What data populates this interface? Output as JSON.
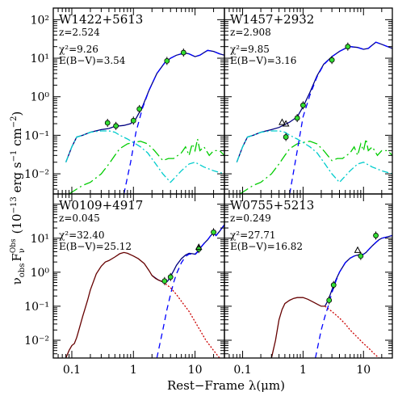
{
  "figure": {
    "xlabel": "Rest−Frame λ(μm)",
    "ylabel": "ν_obs F_ν^Obs (10^−13 erg s^−1 cm^−2)",
    "ylabel_parts": {
      "nu": "ν",
      "obs": "obs",
      "F": "F",
      "Fsub": "ν",
      "Fsup": "Obs",
      "units": "(10",
      "exp": "−13",
      "units2": " erg s",
      "exp2": "−1",
      "units3": " cm",
      "exp3": "−2",
      "close": ")"
    }
  },
  "chart_data": [
    {
      "type": "line",
      "name": "W1422+5613",
      "labels": {
        "z": "z=2.524",
        "chi2": "χ²=9.26",
        "ebv": "E(B−V)=3.54"
      },
      "xscale": "log",
      "yscale": "log",
      "xlim": [
        0.05,
        30
      ],
      "ylim": [
        0.003,
        200
      ],
      "xticks": [
        "0.1",
        "1",
        "10"
      ],
      "yticks": [
        "10⁻²",
        "10⁻¹",
        "10⁰",
        "10¹",
        "10²"
      ],
      "photometry": [
        [
          0.38,
          0.21
        ],
        [
          0.52,
          0.175
        ],
        [
          1.0,
          0.24
        ],
        [
          1.25,
          0.48
        ],
        [
          3.5,
          8.5
        ],
        [
          6.5,
          14
        ]
      ],
      "upper_limits": [],
      "series": [
        {
          "role": "total",
          "color": "#000080",
          "dash": "solid",
          "x": [
            0.08,
            0.1,
            0.12,
            0.15,
            0.2,
            0.3,
            0.4,
            0.5,
            0.7,
            0.9,
            1.1,
            1.4,
            1.8,
            2.4,
            3.2,
            4,
            5,
            6,
            7,
            8,
            10,
            12,
            14,
            16,
            20,
            25,
            30
          ],
          "y": [
            0.02,
            0.05,
            0.09,
            0.1,
            0.12,
            0.14,
            0.15,
            0.17,
            0.18,
            0.2,
            0.27,
            0.55,
            1.5,
            4,
            7.5,
            10,
            12,
            13,
            13.5,
            13,
            11,
            12,
            14,
            16,
            15,
            13,
            12
          ]
        },
        {
          "role": "galaxy",
          "color": "#00cc00",
          "dash": "longdash",
          "x": [
            0.09,
            0.12,
            0.15,
            0.2,
            0.3,
            0.4,
            0.5,
            0.6,
            0.8,
            1,
            1.3,
            1.7,
            2.2,
            3,
            3.7,
            4.5,
            6,
            7,
            8,
            9,
            10,
            11,
            12,
            14,
            17,
            20,
            25,
            30
          ],
          "y": [
            0.003,
            0.004,
            0.005,
            0.006,
            0.01,
            0.018,
            0.03,
            0.045,
            0.06,
            0.065,
            0.07,
            0.06,
            0.04,
            0.022,
            0.025,
            0.025,
            0.035,
            0.05,
            0.03,
            0.06,
            0.04,
            0.08,
            0.04,
            0.05,
            0.03,
            0.04,
            0.04,
            0.03
          ]
        },
        {
          "role": "agn_unobscured",
          "color": "#00cccc",
          "dash": "dashdot",
          "x": [
            0.08,
            0.1,
            0.12,
            0.15,
            0.2,
            0.3,
            0.4,
            0.5,
            0.6,
            0.8,
            1,
            1.3,
            1.7,
            2.2,
            3,
            4,
            6,
            8,
            10,
            14,
            20,
            30
          ],
          "y": [
            0.02,
            0.05,
            0.09,
            0.1,
            0.12,
            0.13,
            0.13,
            0.12,
            0.1,
            0.08,
            0.065,
            0.05,
            0.035,
            0.02,
            0.01,
            0.006,
            0.012,
            0.018,
            0.02,
            0.015,
            0.012,
            0.01
          ]
        },
        {
          "role": "agn_obscured",
          "color": "#0000ff",
          "dash": "dashed",
          "x": [
            0.7,
            0.9,
            1.1,
            1.4,
            1.8,
            2.4,
            3.2,
            4,
            5,
            6,
            7,
            8,
            10,
            12,
            14,
            16,
            20,
            25,
            30
          ],
          "y": [
            0.003,
            0.02,
            0.12,
            0.5,
            1.5,
            4,
            7.5,
            10,
            12,
            13,
            13.5,
            13,
            11,
            12,
            14,
            16,
            15,
            13,
            12
          ]
        }
      ]
    },
    {
      "type": "line",
      "name": "W1457+2932",
      "labels": {
        "z": "z=2.908",
        "chi2": "χ²=9.85",
        "ebv": "E(B−V)=3.16"
      },
      "xscale": "log",
      "yscale": "log",
      "xlim": [
        0.05,
        30
      ],
      "ylim": [
        0.003,
        200
      ],
      "xticks": [
        "0.1",
        "1",
        "10"
      ],
      "yticks": [],
      "photometry": [
        [
          0.52,
          0.09
        ],
        [
          0.8,
          0.28
        ],
        [
          1.0,
          0.6
        ],
        [
          3.0,
          9
        ],
        [
          5.5,
          20
        ]
      ],
      "upper_limits": [
        [
          0.45,
          0.22
        ],
        [
          0.52,
          0.2
        ]
      ],
      "series": [
        {
          "role": "total",
          "color": "#000080",
          "dash": "solid",
          "x": [
            0.08,
            0.1,
            0.12,
            0.15,
            0.2,
            0.3,
            0.4,
            0.5,
            0.6,
            0.8,
            1,
            1.3,
            1.7,
            2.2,
            3,
            4,
            5,
            6,
            8,
            10,
            12,
            14,
            16,
            20,
            25,
            30
          ],
          "y": [
            0.02,
            0.05,
            0.09,
            0.1,
            0.12,
            0.14,
            0.16,
            0.19,
            0.22,
            0.3,
            0.55,
            1.3,
            3.5,
            7,
            11,
            15,
            18,
            20,
            19,
            17,
            18,
            22,
            26,
            23,
            20,
            18
          ]
        },
        {
          "role": "galaxy",
          "color": "#00cc00",
          "dash": "longdash",
          "x": [
            0.09,
            0.12,
            0.15,
            0.2,
            0.3,
            0.4,
            0.5,
            0.6,
            0.8,
            1,
            1.3,
            1.7,
            2.2,
            3,
            3.7,
            4.5,
            6,
            7,
            8,
            9,
            10,
            11,
            12,
            14,
            17,
            20,
            25,
            30
          ],
          "y": [
            0.003,
            0.004,
            0.005,
            0.006,
            0.01,
            0.018,
            0.03,
            0.045,
            0.06,
            0.065,
            0.07,
            0.06,
            0.04,
            0.022,
            0.025,
            0.025,
            0.035,
            0.05,
            0.03,
            0.06,
            0.04,
            0.08,
            0.04,
            0.05,
            0.03,
            0.04,
            0.04,
            0.03
          ]
        },
        {
          "role": "agn_unobscured",
          "color": "#00cccc",
          "dash": "dashdot",
          "x": [
            0.08,
            0.1,
            0.12,
            0.15,
            0.2,
            0.3,
            0.4,
            0.5,
            0.6,
            0.8,
            1,
            1.3,
            1.7,
            2.2,
            3,
            4,
            6,
            8,
            10,
            14,
            20,
            30
          ],
          "y": [
            0.02,
            0.05,
            0.09,
            0.1,
            0.12,
            0.13,
            0.13,
            0.12,
            0.1,
            0.08,
            0.065,
            0.05,
            0.035,
            0.02,
            0.01,
            0.006,
            0.012,
            0.018,
            0.02,
            0.015,
            0.012,
            0.01
          ]
        },
        {
          "role": "agn_obscured",
          "color": "#0000ff",
          "dash": "dashed",
          "x": [
            0.6,
            0.8,
            1,
            1.3,
            1.7,
            2.2,
            3,
            4,
            5,
            6,
            8,
            10,
            12,
            14,
            16,
            20,
            25,
            30
          ],
          "y": [
            0.003,
            0.04,
            0.3,
            1.1,
            3.3,
            6.8,
            11,
            15,
            18,
            20,
            19,
            17,
            18,
            22,
            26,
            23,
            20,
            18
          ]
        }
      ]
    },
    {
      "type": "line",
      "name": "W0109+4917",
      "labels": {
        "z": "z=0.045",
        "chi2": "χ²=32.40",
        "ebv": "E(B−V)=25.12"
      },
      "xscale": "log",
      "yscale": "log",
      "xlim": [
        0.05,
        30
      ],
      "ylim": [
        0.003,
        200
      ],
      "xticks": [
        "0.1",
        "1",
        "10"
      ],
      "yticks": [
        "10⁻²",
        "10⁻¹",
        "10⁰",
        "10¹",
        ""
      ],
      "photometry": [
        [
          3.2,
          0.55
        ],
        [
          4.0,
          0.72
        ],
        [
          11.5,
          4.8
        ],
        [
          20.0,
          15
        ]
      ],
      "upper_limits": [
        [
          11.5,
          5.5
        ]
      ],
      "series": [
        {
          "role": "total",
          "color": "#000080",
          "dash": "solid",
          "x": [
            2,
            2.5,
            3,
            3.3,
            3.6,
            4,
            4.5,
            5,
            6,
            7,
            8,
            9,
            10,
            11,
            12,
            14,
            16,
            18,
            20,
            22,
            25,
            30
          ],
          "y": [
            0.8,
            0.6,
            0.52,
            0.5,
            0.55,
            0.75,
            1.1,
            1.6,
            2.5,
            3.2,
            3.6,
            3.5,
            3.4,
            4,
            5,
            7,
            9,
            12,
            14,
            12,
            16,
            25
          ]
        },
        {
          "role": "host",
          "color": "#660000",
          "dash": "solid",
          "x": [
            0.08,
            0.09,
            0.1,
            0.11,
            0.12,
            0.13,
            0.15,
            0.18,
            0.2,
            0.25,
            0.3,
            0.35,
            0.4,
            0.5,
            0.6,
            0.7,
            0.8,
            1,
            1.2,
            1.5,
            1.8,
            2,
            2.3,
            2.6,
            3
          ],
          "y": [
            0.003,
            0.005,
            0.007,
            0.008,
            0.012,
            0.02,
            0.05,
            0.15,
            0.3,
            0.9,
            1.5,
            2,
            2.2,
            2.8,
            3.5,
            3.8,
            3.6,
            3,
            2.5,
            1.8,
            1.1,
            0.8,
            0.65,
            0.58,
            0.52
          ]
        },
        {
          "role": "host_tail",
          "color": "#cc0000",
          "dash": "dotted",
          "x": [
            3,
            4,
            5,
            6,
            8,
            10,
            12,
            15,
            20,
            25
          ],
          "y": [
            0.52,
            0.35,
            0.22,
            0.14,
            0.07,
            0.035,
            0.02,
            0.01,
            0.005,
            0.003
          ]
        },
        {
          "role": "agn_obscured",
          "color": "#0000ff",
          "dash": "dashed",
          "x": [
            2.4,
            3,
            3.5,
            4,
            4.5,
            5,
            6,
            7,
            8,
            9,
            10,
            11,
            12,
            14,
            16,
            18,
            20,
            22,
            25,
            30
          ],
          "y": [
            0.003,
            0.02,
            0.08,
            0.22,
            0.5,
            0.9,
            1.9,
            2.9,
            3.4,
            3.4,
            3.3,
            3.9,
            5,
            7,
            9,
            12,
            14,
            12,
            16,
            25
          ]
        }
      ]
    },
    {
      "type": "line",
      "name": "W0755+5213",
      "labels": {
        "z": "z=0.249",
        "chi2": "χ²=27.71",
        "ebv": "E(B−V)=16.82"
      },
      "xscale": "log",
      "yscale": "log",
      "xlim": [
        0.05,
        30
      ],
      "ylim": [
        0.003,
        200
      ],
      "xticks": [
        "0.1",
        "1",
        "10"
      ],
      "yticks": [],
      "photometry": [
        [
          2.7,
          0.15
        ],
        [
          3.2,
          0.42
        ],
        [
          9.0,
          3.0
        ],
        [
          16.0,
          12
        ]
      ],
      "upper_limits": [
        [
          8.0,
          4.5
        ]
      ],
      "series": [
        {
          "role": "total",
          "color": "#000080",
          "dash": "solid",
          "x": [
            2.3,
            2.6,
            3,
            3.5,
            4,
            5,
            6,
            7,
            8,
            9,
            10,
            11,
            12,
            14,
            16,
            18,
            20,
            25,
            30
          ],
          "y": [
            0.1,
            0.15,
            0.3,
            0.6,
            1,
            1.9,
            2.6,
            3,
            3.2,
            3.3,
            3.4,
            3.8,
            4.5,
            6,
            7.5,
            9,
            10,
            11,
            12
          ]
        },
        {
          "role": "host",
          "color": "#660000",
          "dash": "solid",
          "x": [
            0.3,
            0.32,
            0.35,
            0.4,
            0.45,
            0.5,
            0.6,
            0.7,
            0.8,
            1,
            1.2,
            1.5,
            1.8,
            2,
            2.3
          ],
          "y": [
            0.003,
            0.005,
            0.01,
            0.04,
            0.08,
            0.12,
            0.15,
            0.17,
            0.18,
            0.18,
            0.16,
            0.13,
            0.11,
            0.1,
            0.1
          ]
        },
        {
          "role": "host_tail",
          "color": "#cc0000",
          "dash": "dotted",
          "x": [
            2.3,
            3,
            4,
            5,
            6,
            8,
            10,
            12,
            15,
            18
          ],
          "y": [
            0.1,
            0.07,
            0.045,
            0.03,
            0.02,
            0.012,
            0.008,
            0.006,
            0.004,
            0.003
          ]
        },
        {
          "role": "agn_obscured",
          "color": "#0000ff",
          "dash": "dashed",
          "x": [
            1.6,
            2,
            2.3,
            2.6,
            3,
            3.5,
            4,
            5,
            6,
            7,
            8,
            9,
            10,
            11,
            12,
            14,
            16,
            18,
            20,
            25,
            30
          ],
          "y": [
            0.003,
            0.02,
            0.05,
            0.1,
            0.25,
            0.55,
            1,
            1.9,
            2.6,
            3,
            3.2,
            3.3,
            3.4,
            3.8,
            4.5,
            6,
            7.5,
            9,
            10,
            11,
            12
          ]
        }
      ]
    }
  ]
}
